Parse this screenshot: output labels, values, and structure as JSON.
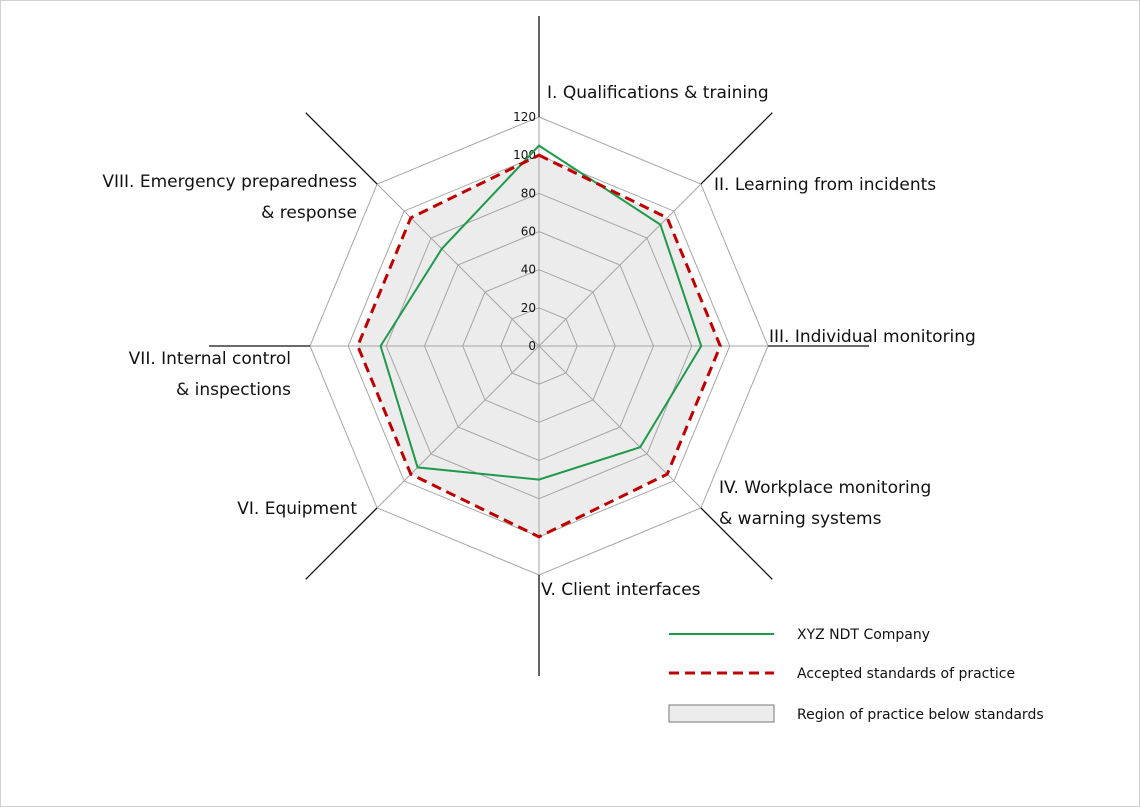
{
  "chart_data": {
    "type": "radar",
    "categories": [
      [
        "I. Qualifications & training"
      ],
      [
        "II. Learning from incidents"
      ],
      [
        "III. Individual monitoring"
      ],
      [
        "IV. Workplace monitoring",
        "& warning systems"
      ],
      [
        "V. Client interfaces"
      ],
      [
        "VI. Equipment"
      ],
      [
        "VII. Internal control",
        "& inspections"
      ],
      [
        "VIII. Emergency preparedness",
        "& response"
      ]
    ],
    "ticks": [
      0,
      20,
      40,
      60,
      80,
      100,
      120
    ],
    "rlim": [
      0,
      120
    ],
    "grid": true,
    "series": [
      {
        "name": "XYZ NDT Company",
        "values": [
          105,
          90,
          85,
          75,
          70,
          90,
          83,
          72
        ],
        "color": "#1f9a4b",
        "style": "solid"
      },
      {
        "name": "Accepted standards of practice",
        "values": [
          100,
          95,
          95,
          95,
          100,
          95,
          95,
          95
        ],
        "color": "#c00000",
        "style": "dashed"
      }
    ],
    "region": {
      "name": "Region of practice below standards",
      "color": "#ececec"
    },
    "legend": {
      "position": "bottom-right",
      "items": [
        {
          "label": "XYZ NDT Company",
          "kind": "line"
        },
        {
          "label": "Accepted standards of practice",
          "kind": "dashed"
        },
        {
          "label": "Region of practice below standards",
          "kind": "box"
        }
      ]
    }
  }
}
